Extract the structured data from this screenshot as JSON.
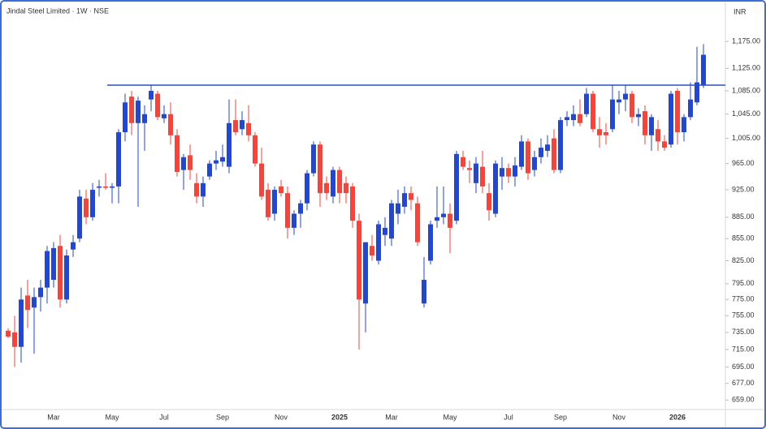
{
  "chart_data": {
    "type": "candlestick",
    "title": "Jindal Steel Limited · 1W · NSE",
    "y_axis_label": "INR",
    "log": true,
    "ylim": [
      649,
      1248
    ],
    "yticks": [
      {
        "value": 1175,
        "label": "1,175.00"
      },
      {
        "value": 1125,
        "label": "1,125.00"
      },
      {
        "value": 1085,
        "label": "1,085.00"
      },
      {
        "value": 1045,
        "label": "1,045.00"
      },
      {
        "value": 1005,
        "label": "1,005.00"
      },
      {
        "value": 965,
        "label": "965.00"
      },
      {
        "value": 925,
        "label": "925.00"
      },
      {
        "value": 885,
        "label": "885.00"
      },
      {
        "value": 855,
        "label": "855.00"
      },
      {
        "value": 825,
        "label": "825.00"
      },
      {
        "value": 795,
        "label": "795.00"
      },
      {
        "value": 775,
        "label": "775.00"
      },
      {
        "value": 755,
        "label": "755.00"
      },
      {
        "value": 735,
        "label": "735.00"
      },
      {
        "value": 715,
        "label": "715.00"
      },
      {
        "value": 695,
        "label": "695.00"
      },
      {
        "value": 677,
        "label": "677.00"
      },
      {
        "value": 659,
        "label": "659.00"
      }
    ],
    "up_color": "#2547c9",
    "down_color": "#f0463e",
    "hline": {
      "value": 1095,
      "color": "#2b4fc4",
      "from_index": 16
    },
    "categories": [
      null,
      null,
      null,
      null,
      null,
      null,
      null,
      "Mar",
      null,
      null,
      null,
      null,
      null,
      null,
      null,
      null,
      "May",
      null,
      null,
      null,
      null,
      null,
      null,
      null,
      "Jul",
      null,
      null,
      null,
      null,
      null,
      null,
      null,
      null,
      "Sep",
      null,
      null,
      null,
      null,
      null,
      null,
      null,
      null,
      "Nov",
      null,
      null,
      null,
      null,
      null,
      null,
      null,
      null,
      "2025",
      null,
      null,
      null,
      null,
      null,
      null,
      null,
      "Mar",
      null,
      null,
      null,
      null,
      null,
      null,
      null,
      null,
      "May",
      null,
      null,
      null,
      null,
      null,
      null,
      null,
      null,
      "Jul",
      null,
      null,
      null,
      null,
      null,
      null,
      null,
      "Sep",
      null,
      null,
      null,
      null,
      null,
      null,
      null,
      null,
      "Nov",
      null,
      null,
      null,
      null,
      null,
      null,
      null,
      null,
      "2026",
      null,
      null,
      null,
      null
    ],
    "open": [
      737,
      735,
      718,
      780,
      765,
      778,
      790,
      800,
      845,
      775,
      840,
      855,
      912,
      885,
      928,
      930,
      928,
      930,
      1015,
      1075,
      1030,
      1030,
      1070,
      1080,
      1038,
      1045,
      1010,
      955,
      978,
      935,
      915,
      945,
      965,
      968,
      960,
      1035,
      1020,
      1030,
      1010,
      965,
      925,
      890,
      930,
      920,
      870,
      890,
      905,
      950,
      995,
      935,
      915,
      955,
      935,
      930,
      880,
      770,
      845,
      825,
      860,
      855,
      890,
      900,
      920,
      905,
      770,
      825,
      880,
      885,
      890,
      880,
      975,
      958,
      935,
      960,
      920,
      890,
      945,
      958,
      945,
      960,
      1000,
      955,
      975,
      985,
      1005,
      955,
      1035,
      1035,
      1045,
      1045,
      1080,
      1020,
      1015,
      1020,
      1065,
      1070,
      1080,
      1040,
      1050,
      1010,
      1020,
      1000,
      995,
      1085,
      1015,
      1040,
      1065,
      1095
    ],
    "high": [
      740,
      755,
      790,
      800,
      790,
      800,
      845,
      850,
      860,
      840,
      860,
      925,
      925,
      935,
      940,
      950,
      935,
      1020,
      1080,
      1085,
      1075,
      1060,
      1095,
      1085,
      1060,
      1065,
      1020,
      980,
      995,
      950,
      945,
      970,
      985,
      995,
      1070,
      1070,
      1050,
      1060,
      1015,
      990,
      935,
      930,
      940,
      930,
      895,
      910,
      955,
      1000,
      1000,
      945,
      960,
      960,
      945,
      935,
      890,
      850,
      860,
      880,
      885,
      910,
      925,
      930,
      930,
      915,
      830,
      880,
      930,
      930,
      905,
      985,
      985,
      970,
      975,
      985,
      935,
      970,
      975,
      965,
      975,
      1010,
      1005,
      985,
      1005,
      1010,
      1020,
      1040,
      1050,
      1060,
      1070,
      1090,
      1085,
      1040,
      1030,
      1095,
      1085,
      1095,
      1085,
      1055,
      1060,
      1045,
      1035,
      1010,
      1085,
      1090,
      1045,
      1100,
      1165,
      1170
    ],
    "low": [
      728,
      695,
      700,
      740,
      710,
      760,
      770,
      790,
      765,
      770,
      830,
      850,
      875,
      880,
      915,
      925,
      905,
      905,
      1000,
      1010,
      900,
      985,
      1050,
      1035,
      1030,
      995,
      945,
      925,
      940,
      905,
      900,
      940,
      955,
      960,
      950,
      1010,
      1010,
      1000,
      960,
      910,
      880,
      880,
      915,
      855,
      860,
      870,
      895,
      945,
      900,
      910,
      905,
      905,
      905,
      870,
      715,
      735,
      825,
      820,
      845,
      845,
      875,
      890,
      895,
      845,
      765,
      820,
      870,
      875,
      835,
      875,
      955,
      935,
      920,
      920,
      880,
      885,
      925,
      935,
      930,
      955,
      940,
      945,
      965,
      975,
      950,
      950,
      1025,
      1025,
      1025,
      1040,
      1015,
      990,
      995,
      1015,
      1045,
      1050,
      1030,
      1025,
      995,
      985,
      985,
      985,
      990,
      995,
      1000,
      1035,
      1060,
      1090
    ],
    "close": [
      730,
      718,
      775,
      762,
      778,
      790,
      838,
      842,
      775,
      832,
      850,
      915,
      885,
      925,
      930,
      928,
      930,
      1015,
      1065,
      1030,
      1068,
      1045,
      1085,
      1040,
      1045,
      1010,
      952,
      975,
      955,
      915,
      935,
      965,
      970,
      975,
      1030,
      1015,
      1035,
      1010,
      965,
      915,
      885,
      925,
      920,
      870,
      890,
      905,
      950,
      995,
      920,
      920,
      955,
      920,
      920,
      880,
      775,
      850,
      832,
      875,
      870,
      905,
      905,
      920,
      910,
      850,
      800,
      875,
      885,
      890,
      870,
      980,
      960,
      955,
      965,
      930,
      895,
      965,
      958,
      945,
      962,
      1000,
      950,
      975,
      990,
      995,
      955,
      1035,
      1040,
      1045,
      1030,
      1080,
      1020,
      1010,
      1010,
      1070,
      1070,
      1080,
      1040,
      1045,
      1010,
      1040,
      1000,
      990,
      1080,
      1015,
      1040,
      1070,
      1100,
      1150
    ]
  }
}
